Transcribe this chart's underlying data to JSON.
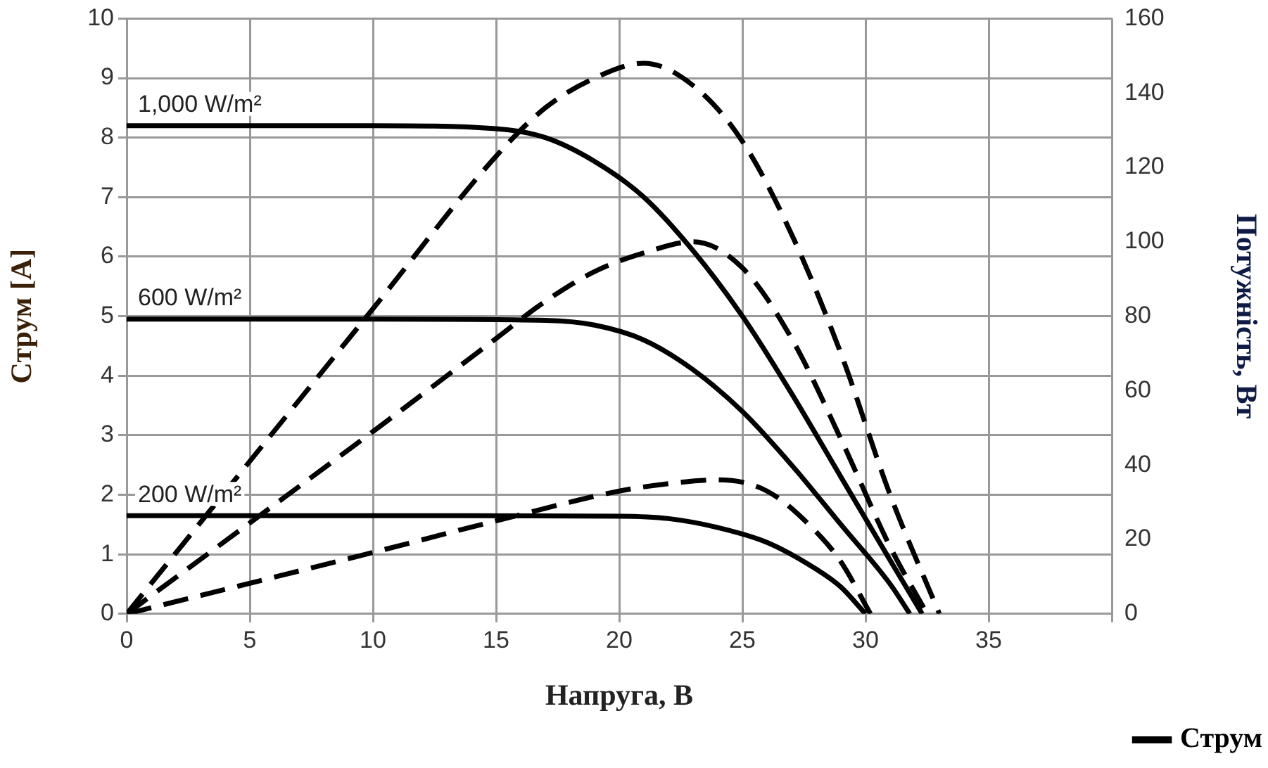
{
  "chart_data": {
    "type": "line",
    "xlabel": "Напруга, В",
    "ylabel": "Струм [A]",
    "y2label": "Потужність, Вт",
    "xlim": [
      0,
      40
    ],
    "xticks": [
      0,
      5,
      10,
      15,
      20,
      25,
      30,
      35,
      {
        "value": 40,
        "label": null
      }
    ],
    "ylim": [
      0,
      10
    ],
    "yticks": [
      0,
      1,
      2,
      3,
      4,
      5,
      6,
      7,
      8,
      9,
      10
    ],
    "y2lim": [
      0,
      160
    ],
    "y2ticks": [
      0,
      20,
      40,
      60,
      80,
      100,
      120,
      140,
      160
    ],
    "grid": true,
    "legend": "bottom right",
    "marker": "none",
    "annotations": [
      "1,000 W/m²",
      "600 W/m²",
      "200 W/m²"
    ],
    "series": [
      {
        "name": "Струм",
        "color": "#000000",
        "line_style": "solid",
        "x": [
          0,
          10,
          15,
          17,
          19,
          21,
          23,
          25,
          27,
          29,
          31,
          32.3
        ],
        "values": [
          8.2,
          8.2,
          8.15,
          8.0,
          7.6,
          7.0,
          6.1,
          5.0,
          3.7,
          2.3,
          0.9,
          0
        ]
      },
      {
        "color": "#000000",
        "line_style": "solid",
        "x": [
          0,
          10,
          17,
          19,
          21,
          23,
          25,
          27,
          29,
          31,
          31.8
        ],
        "values": [
          4.95,
          4.95,
          4.93,
          4.85,
          4.6,
          4.1,
          3.4,
          2.5,
          1.5,
          0.5,
          0
        ]
      },
      {
        "color": "#000000",
        "line_style": "solid",
        "x": [
          0,
          10,
          20,
          22,
          24,
          26,
          28,
          29,
          30
        ],
        "values": [
          1.65,
          1.65,
          1.64,
          1.6,
          1.45,
          1.2,
          0.75,
          0.45,
          0
        ]
      },
      {
        "color": "#000000",
        "line_style": "dashed",
        "axis": "y2",
        "x": [
          0,
          10,
          15,
          17,
          19,
          21,
          23,
          25,
          27,
          29,
          31,
          33
        ],
        "values": [
          0,
          82,
          123,
          136,
          144,
          148,
          142,
          127,
          102,
          70,
          32,
          0
        ]
      },
      {
        "color": "#000000",
        "line_style": "dashed",
        "axis": "y2",
        "x": [
          0,
          10,
          15,
          17,
          19,
          21,
          23,
          25,
          27,
          29,
          31,
          32.5
        ],
        "values": [
          0,
          49,
          74,
          84,
          92,
          97,
          100,
          93,
          74,
          47,
          18,
          0
        ]
      },
      {
        "color": "#000000",
        "line_style": "dashed",
        "axis": "y2",
        "x": [
          0,
          10,
          15,
          20,
          22,
          24,
          26,
          28,
          29,
          30.2
        ],
        "values": [
          0,
          16.5,
          25,
          33,
          35,
          36,
          33,
          22,
          14,
          0
        ]
      }
    ]
  }
}
